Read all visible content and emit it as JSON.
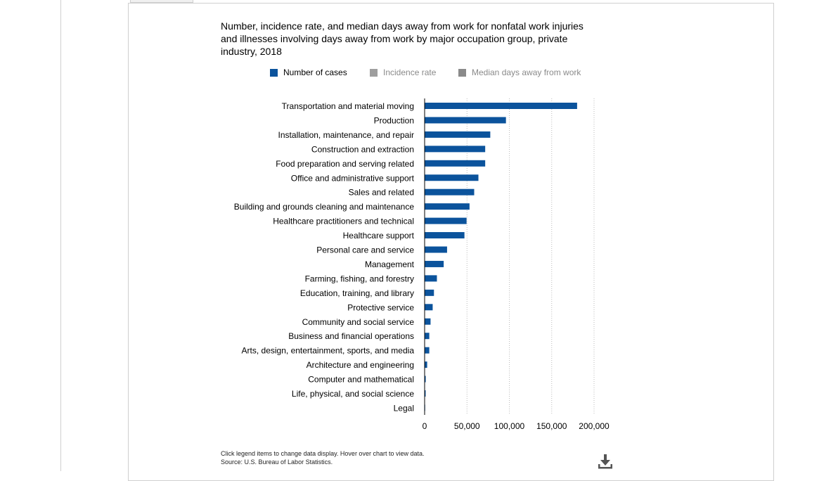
{
  "chart_title": "Number, incidence rate, and median days away from work for nonfatal work injuries and illnesses involving days away from work by major occupation group, private industry, 2018",
  "legend": [
    {
      "label": "Number of cases",
      "color": "#0b539c",
      "active": true
    },
    {
      "label": "Incidence rate",
      "color": "#9e9e9e",
      "active": false
    },
    {
      "label": "Median days away from work",
      "color": "#8a8a8a",
      "active": false
    }
  ],
  "colors": {
    "bar": "#0b539c",
    "legend_inactive_text": "#8a8a8a",
    "legend_active_text": "#000000",
    "grid": "#bbbbbb"
  },
  "footnotes": {
    "instructions": "Click legend items to change data display. Hover over chart to view data.",
    "source": "Source: U.S. Bureau of Labor Statistics."
  },
  "icons": {
    "download": "download-icon"
  },
  "chart_data": {
    "type": "bar",
    "orientation": "horizontal",
    "title": "Number, incidence rate, and median days away from work for nonfatal work injuries and illnesses involving days away from work by major occupation group, private industry, 2018",
    "xlabel": "",
    "ylabel": "",
    "xlim": [
      0,
      200000
    ],
    "xticks": [
      "0",
      "50,000",
      "100,000",
      "150,000",
      "200,000"
    ],
    "xtick_values": [
      0,
      50000,
      100000,
      150000,
      200000
    ],
    "grid": true,
    "legend_position": "top",
    "categories": [
      "Transportation and material moving",
      "Production",
      "Installation, maintenance, and repair",
      "Construction and extraction",
      "Food preparation and serving related",
      "Office and administrative support",
      "Sales and related",
      "Building and grounds cleaning and maintenance",
      "Healthcare practitioners and technical",
      "Healthcare support",
      "Personal care and service",
      "Management",
      "Farming, fishing, and forestry",
      "Education, training, and library",
      "Protective service",
      "Community and social service",
      "Business and financial operations",
      "Arts, design, entertainment, sports, and media",
      "Architecture and engineering",
      "Computer and mathematical",
      "Life, physical, and social science",
      "Legal"
    ],
    "series": [
      {
        "name": "Number of cases",
        "values": [
          180000,
          96000,
          77500,
          71500,
          71500,
          63500,
          58500,
          53000,
          49500,
          47000,
          26500,
          22500,
          14500,
          11000,
          9500,
          7000,
          5500,
          5500,
          3000,
          1300,
          1200,
          600
        ]
      }
    ]
  }
}
